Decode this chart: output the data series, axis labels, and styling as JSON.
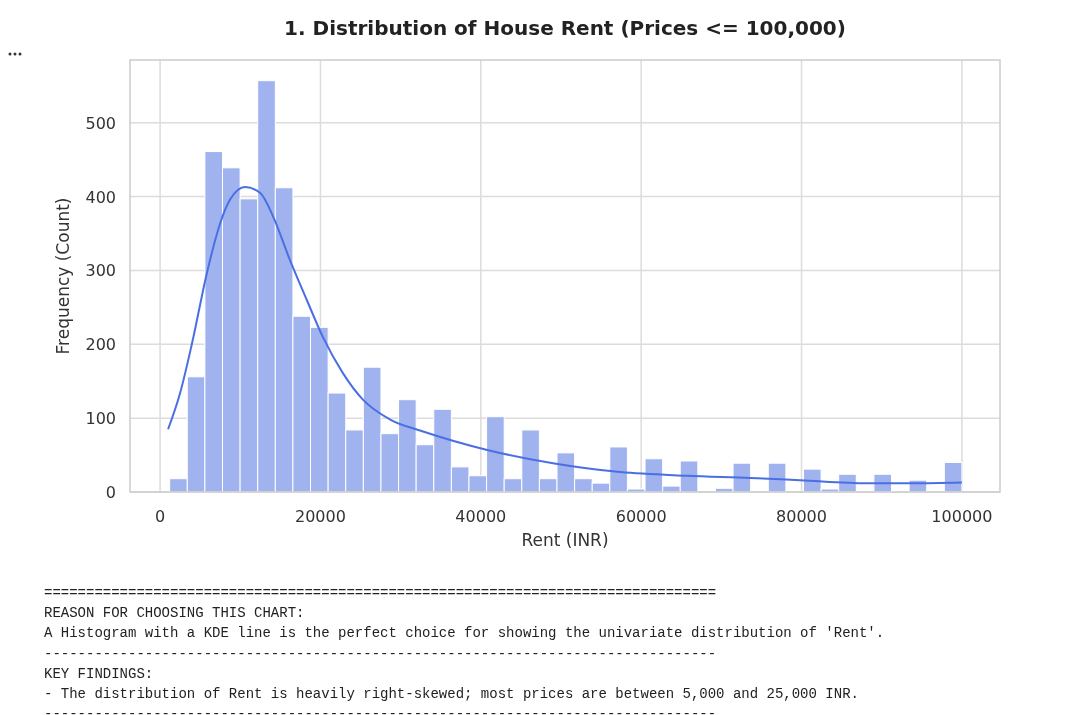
{
  "chart_data": {
    "type": "histogram",
    "title": "1. Distribution of House Rent (Prices <= 100,000)",
    "xlabel": "Rent (INR)",
    "ylabel": "Frequency (Count)",
    "xlim": [
      -3750,
      104750
    ],
    "ylim": [
      0,
      585
    ],
    "xticks": [
      0,
      20000,
      40000,
      60000,
      80000,
      100000
    ],
    "yticks": [
      0,
      100,
      200,
      300,
      400,
      500
    ],
    "grid": true,
    "series": [
      {
        "color": "#a0b3ee",
        "bins": [
          1200,
          3396,
          5591,
          7787,
          9982,
          12178,
          14374,
          16569,
          18765,
          20960,
          23156,
          25352,
          27547,
          29743,
          31938,
          34134,
          36330,
          38525,
          40721,
          42916,
          45112,
          47308,
          49503,
          51699,
          53894,
          56090,
          58286,
          60481,
          62677,
          64872,
          67068,
          69264,
          71459,
          73655,
          75850,
          78046,
          80242,
          82437,
          84633,
          86828,
          89024,
          91220,
          93415,
          95611,
          97806,
          100000
        ],
        "values": [
          18,
          156,
          461,
          439,
          397,
          557,
          412,
          238,
          223,
          134,
          84,
          169,
          79,
          125,
          64,
          112,
          34,
          22,
          102,
          18,
          84,
          18,
          53,
          18,
          12,
          61,
          4,
          45,
          8,
          42,
          0,
          5,
          39,
          0,
          39,
          0,
          31,
          4,
          24,
          0,
          24,
          0,
          16,
          0,
          40
        ]
      },
      {
        "type": "line",
        "color": "#4a6fe3",
        "x": [
          1000,
          2500,
          4000,
          5850,
          7500,
          8730,
          10600,
          12500,
          14100,
          16200,
          18300,
          20300,
          22800,
          25300,
          28700,
          32800,
          40800,
          49000,
          57400,
          65700,
          73600,
          79800,
          88200,
          93900,
          100000
        ],
        "values": [
          85,
          134,
          202,
          297,
          364,
          396,
          413,
          405,
          373,
          314,
          260,
          210,
          161,
          125,
          98,
          82,
          57,
          39,
          27,
          22,
          19,
          16,
          12,
          12,
          13
        ]
      }
    ],
    "annotations": [
      "================================================================================",
      "REASON FOR CHOOSING THIS CHART:",
      "A Histogram with a KDE line is the perfect choice for showing the univariate distribution of 'Rent'.",
      "--------------------------------------------------------------------------------",
      "KEY FINDINGS:",
      "- The distribution of Rent is heavily right-skewed; most prices are between 5,000 and 25,000 INR.",
      "--------------------------------------------------------------------------------"
    ]
  }
}
